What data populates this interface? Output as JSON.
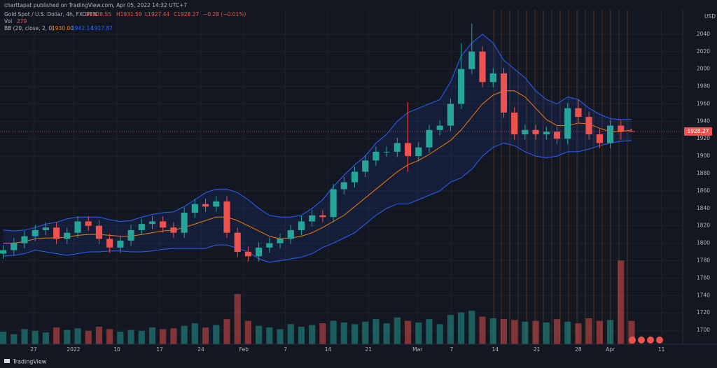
{
  "header": {
    "published": "charttapat published on TradingView.com, Apr 05, 2022 14:32 UTC+7"
  },
  "footer": {
    "brand": "TradingView"
  },
  "chart_data": {
    "type": "candlestick",
    "title": "Gold Spot / U.S. Dollar, 4h, FXOPEN",
    "ohlc_labels": [
      "O1928.55",
      "H1931.59",
      "L1927.44",
      "C1928.27"
    ],
    "change": "−0.28 (−0.01%)",
    "currency": "USD",
    "up_color": "#26a69a",
    "down_color": "#ef5350",
    "xlim": [
      -0.3,
      63.8
    ],
    "xticks": [
      {
        "value": 2.86,
        "label": "27"
      },
      {
        "value": 6.6,
        "label": "2022"
      },
      {
        "value": 10.68,
        "label": "10"
      },
      {
        "value": 14.69,
        "label": "17"
      },
      {
        "value": 18.57,
        "label": "24"
      },
      {
        "value": 22.6,
        "label": "Feb"
      },
      {
        "value": 26.5,
        "label": "7"
      },
      {
        "value": 30.5,
        "label": "14"
      },
      {
        "value": 34.3,
        "label": "21"
      },
      {
        "value": 38.9,
        "label": "Mar"
      },
      {
        "value": 42.1,
        "label": "7"
      },
      {
        "value": 46.2,
        "label": "14"
      },
      {
        "value": 50.1,
        "label": "21"
      },
      {
        "value": 54.0,
        "label": "28"
      },
      {
        "value": 57.0,
        "label": "Apr"
      },
      {
        "value": 61.8,
        "label": "11"
      }
    ],
    "ylim": [
      1684,
      2068
    ],
    "yticks": [
      1700,
      1720,
      1740,
      1760,
      1780,
      1800,
      1820,
      1840,
      1860,
      1880,
      1900,
      1920,
      1940,
      1960,
      1980,
      2000,
      2020,
      2040
    ],
    "open": [
      1788,
      1792,
      1800,
      1808,
      1815,
      1818,
      1805,
      1812,
      1825,
      1820,
      1805,
      1795,
      1803,
      1815,
      1822,
      1825,
      1818,
      1812,
      1835,
      1845,
      1842,
      1848,
      1812,
      1790,
      1785,
      1795,
      1800,
      1805,
      1815,
      1825,
      1832,
      1830,
      1862,
      1870,
      1882,
      1895,
      1905,
      1905,
      1915,
      1900,
      1910,
      1930,
      1935,
      1960,
      2000,
      2020,
      1985,
      1995,
      1950,
      1925,
      1930,
      1925,
      1928,
      1920,
      1955,
      1945,
      1925,
      1915,
      1935,
      1928.55
    ],
    "high": [
      1798,
      1806,
      1814,
      1821,
      1824,
      1824,
      1818,
      1831,
      1831,
      1826,
      1811,
      1809,
      1821,
      1828,
      1831,
      1831,
      1824,
      1841,
      1851,
      1851,
      1854,
      1854,
      1818,
      1796,
      1801,
      1806,
      1811,
      1821,
      1831,
      1838,
      1838,
      1868,
      1876,
      1888,
      1901,
      1911,
      1911,
      1921,
      1962,
      1916,
      1936,
      1941,
      1966,
      2030,
      2052,
      2026,
      2001,
      2001,
      1956,
      1936,
      1936,
      1934,
      1934,
      1961,
      1965,
      1951,
      1931,
      1941,
      1941,
      1931.59
    ],
    "low": [
      1782,
      1786,
      1794,
      1802,
      1809,
      1799,
      1799,
      1806,
      1814,
      1799,
      1789,
      1789,
      1797,
      1809,
      1816,
      1812,
      1806,
      1806,
      1829,
      1836,
      1836,
      1806,
      1784,
      1779,
      1779,
      1789,
      1794,
      1799,
      1809,
      1819,
      1824,
      1824,
      1856,
      1864,
      1876,
      1889,
      1899,
      1899,
      1882,
      1894,
      1904,
      1924,
      1929,
      1954,
      1994,
      1979,
      1979,
      1944,
      1919,
      1919,
      1919,
      1919,
      1914,
      1914,
      1939,
      1919,
      1909,
      1909,
      1919,
      1927.44
    ],
    "close": [
      1792,
      1800,
      1808,
      1815,
      1818,
      1805,
      1812,
      1825,
      1820,
      1805,
      1795,
      1803,
      1815,
      1822,
      1825,
      1818,
      1812,
      1835,
      1845,
      1842,
      1848,
      1812,
      1790,
      1785,
      1795,
      1800,
      1805,
      1815,
      1825,
      1832,
      1830,
      1862,
      1870,
      1882,
      1895,
      1905,
      1905,
      1915,
      1900,
      1910,
      1930,
      1935,
      1960,
      2000,
      2020,
      1985,
      1995,
      1950,
      1925,
      1930,
      1925,
      1928,
      1920,
      1955,
      1945,
      1925,
      1915,
      1935,
      1928.55,
      1928.27
    ],
    "volume": {
      "name": "Vol",
      "y2lim": [
        0,
        4000
      ],
      "values": [
        150,
        120,
        180,
        160,
        140,
        200,
        170,
        190,
        160,
        210,
        180,
        150,
        170,
        160,
        200,
        180,
        190,
        220,
        250,
        200,
        230,
        300,
        600,
        280,
        220,
        200,
        180,
        240,
        210,
        230,
        250,
        280,
        260,
        240,
        270,
        300,
        250,
        320,
        280,
        260,
        300,
        240,
        350,
        380,
        400,
        330,
        310,
        300,
        290,
        270,
        280,
        260,
        300,
        270,
        250,
        310,
        280,
        290,
        1000,
        279
      ]
    },
    "bb": {
      "name": "BB (20, close, 2, 0)",
      "series": [
        {
          "color": "#f57c00",
          "value_label": "1930.00",
          "values": [
            1800,
            1800,
            1802,
            1805,
            1806,
            1806,
            1807,
            1809,
            1810,
            1810,
            1809,
            1808,
            1808,
            1810,
            1812,
            1814,
            1815,
            1818,
            1822,
            1826,
            1830,
            1830,
            1826,
            1820,
            1814,
            1808,
            1805,
            1806,
            1808,
            1812,
            1818,
            1825,
            1832,
            1842,
            1852,
            1862,
            1872,
            1882,
            1890,
            1895,
            1902,
            1910,
            1918,
            1930,
            1945,
            1960,
            1970,
            1975,
            1975,
            1968,
            1955,
            1942,
            1935,
            1935,
            1938,
            1937,
            1932,
            1928,
            1928,
            1930
          ]
        },
        {
          "color": "#2962ff",
          "value_label": "1942.14",
          "values": [
            1815,
            1814,
            1815,
            1818,
            1822,
            1824,
            1828,
            1830,
            1830,
            1830,
            1827,
            1825,
            1826,
            1830,
            1833,
            1835,
            1836,
            1842,
            1850,
            1858,
            1862,
            1862,
            1858,
            1850,
            1840,
            1832,
            1830,
            1830,
            1832,
            1840,
            1850,
            1865,
            1878,
            1890,
            1900,
            1915,
            1925,
            1940,
            1950,
            1955,
            1960,
            1965,
            1985,
            2015,
            2030,
            2040,
            2030,
            2010,
            2000,
            1990,
            1975,
            1965,
            1960,
            1968,
            1965,
            1955,
            1948,
            1943,
            1942,
            1942.14
          ]
        },
        {
          "color": "#2962ff",
          "value_label": "1917.87",
          "values": [
            1785,
            1786,
            1788,
            1792,
            1790,
            1788,
            1786,
            1788,
            1790,
            1790,
            1791,
            1791,
            1790,
            1790,
            1791,
            1793,
            1794,
            1794,
            1794,
            1794,
            1798,
            1798,
            1794,
            1790,
            1782,
            1778,
            1780,
            1782,
            1784,
            1788,
            1795,
            1800,
            1806,
            1812,
            1822,
            1832,
            1840,
            1845,
            1845,
            1850,
            1855,
            1860,
            1870,
            1875,
            1885,
            1900,
            1910,
            1915,
            1912,
            1905,
            1900,
            1898,
            1900,
            1905,
            1905,
            1908,
            1912,
            1915,
            1917,
            1917.87
          ]
        }
      ]
    }
  }
}
